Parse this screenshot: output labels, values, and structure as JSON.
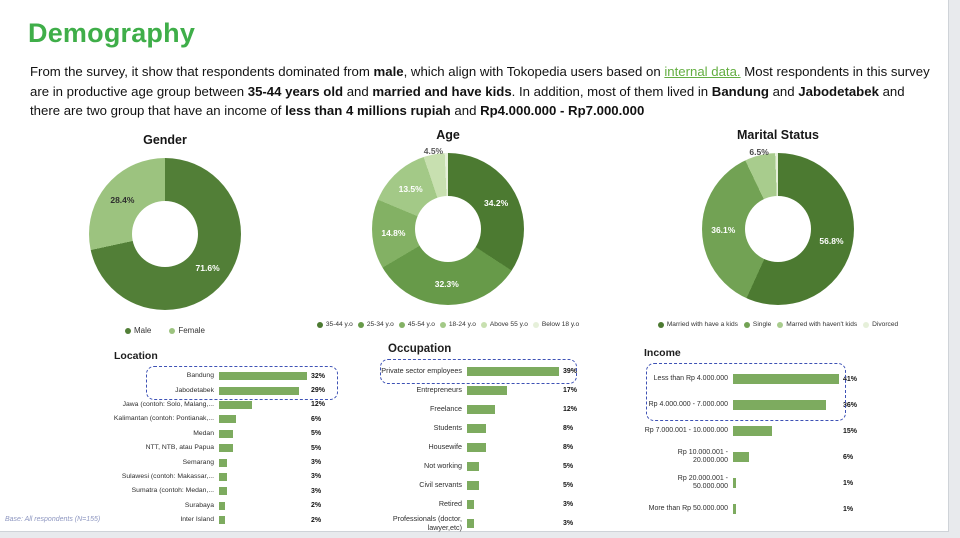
{
  "page": {
    "title": "Demography",
    "footnote": "Base: All respondents (N=155)"
  },
  "intro": {
    "segments": [
      {
        "text": "From the survey, it show that respondents dominated from ",
        "style": "normal"
      },
      {
        "text": "male",
        "style": "bold"
      },
      {
        "text": ", which align with Tokopedia users based on ",
        "style": "normal"
      },
      {
        "text": "internal data.",
        "style": "link"
      },
      {
        "text": " Most respondents in this survey are in productive age group between ",
        "style": "normal"
      },
      {
        "text": "35-44 years old",
        "style": "bold"
      },
      {
        "text": " and ",
        "style": "normal"
      },
      {
        "text": "married and have kids",
        "style": "bold"
      },
      {
        "text": ". In addition, most of them lived in ",
        "style": "normal"
      },
      {
        "text": "Bandung",
        "style": "bold"
      },
      {
        "text": " and ",
        "style": "normal"
      },
      {
        "text": "Jabodetabek",
        "style": "bold"
      },
      {
        "text": " and there are two group that have an income of ",
        "style": "normal"
      },
      {
        "text": "less than 4 millions rupiah",
        "style": "bold"
      },
      {
        "text": " and ",
        "style": "normal"
      },
      {
        "text": "Rp4.000.000 - Rp7.000.000",
        "style": "bold"
      }
    ]
  },
  "highlight_color": "#3e52b5",
  "chart_data": [
    {
      "id": "gender",
      "type": "pie",
      "title": "Gender",
      "labels": [
        "Male",
        "Female"
      ],
      "values": [
        71.6,
        28.4
      ],
      "pct_labels": [
        "71.6%",
        "28.4%"
      ],
      "colors": [
        "#527f37",
        "#9cc37f"
      ],
      "label_colors": [
        "#ffffff",
        "#2f2f2f"
      ],
      "legend_position": "bottom"
    },
    {
      "id": "age",
      "type": "pie",
      "title": "Age",
      "labels": [
        "35-44 y.o",
        "25-34 y.o",
        "45-54 y.o",
        "18-24 y.o",
        "Above 55 y.o",
        "Below 18 y.o"
      ],
      "values": [
        34.2,
        32.3,
        14.8,
        13.5,
        4.5,
        0.7
      ],
      "pct_labels": [
        "34.2%",
        "32.3%",
        "14.8%",
        "13.5%",
        "4.5%",
        ""
      ],
      "colors": [
        "#4c7a31",
        "#679a49",
        "#83b164",
        "#a3c987",
        "#c8e0b0",
        "#e6f0da"
      ],
      "label_colors": [
        "#ffffff",
        "#ffffff",
        "#ffffff",
        "#ffffff",
        "#5a5a5a",
        ""
      ],
      "legend_position": "bottom"
    },
    {
      "id": "marital",
      "type": "pie",
      "title": "Marital Status",
      "labels": [
        "Married with have a kids",
        "Single",
        "Marred with haven't kids",
        "Divorced"
      ],
      "values": [
        56.8,
        36.1,
        6.5,
        0.6
      ],
      "pct_labels": [
        "56.8%",
        "36.1%",
        "6.5%",
        ""
      ],
      "colors": [
        "#4c7a31",
        "#72a254",
        "#a8cc8d",
        "#e6f0da"
      ],
      "label_colors": [
        "#ffffff",
        "#ffffff",
        "#474747",
        ""
      ],
      "legend_position": "bottom"
    },
    {
      "id": "location",
      "type": "bar",
      "title": "Location",
      "categories": [
        "Bandung",
        "Jabodetabek",
        "Jawa (contoh: Solo, Malang,...",
        "Kalimantan (contoh: Pontianak,...",
        "Medan",
        "NTT, NTB, atau Papua",
        "Semarang",
        "Sulawesi (contoh: Makassar,...",
        "Sumatra (contoh: Medan,...",
        "Surabaya",
        "Inter Island"
      ],
      "values": [
        32,
        29,
        12,
        6,
        5,
        5,
        3,
        3,
        3,
        2,
        2
      ],
      "value_labels": [
        "32%",
        "29%",
        "12%",
        "6%",
        "5%",
        "5%",
        "3%",
        "3%",
        "3%",
        "2%",
        "2%"
      ],
      "bar_color": "#7dab5f",
      "highlight_rows": 2
    },
    {
      "id": "occupation",
      "type": "bar",
      "title": "Occupation",
      "categories": [
        "Private sector employees",
        "Entrepreneurs",
        "Freelance",
        "Students",
        "Housewife",
        "Not working",
        "Civil servants",
        "Retired",
        "Professionals (doctor, lawyer,etc)"
      ],
      "values": [
        39,
        17,
        12,
        8,
        8,
        5,
        5,
        3,
        3
      ],
      "value_labels": [
        "39%",
        "17%",
        "12%",
        "8%",
        "8%",
        "5%",
        "5%",
        "3%",
        "3%"
      ],
      "bar_color": "#7dab5f",
      "highlight_rows": 1
    },
    {
      "id": "income",
      "type": "bar",
      "title": "Income",
      "categories": [
        "Less than Rp 4.000.000",
        "Rp 4.000.000 - 7.000.000",
        "Rp 7.000.001 - 10.000.000",
        "Rp 10.000.001 - 20.000.000",
        "Rp 20.000.001 - 50.000.000",
        "More than Rp 50.000.000"
      ],
      "values": [
        41,
        36,
        15,
        6,
        1,
        1
      ],
      "value_labels": [
        "41%",
        "36%",
        "15%",
        "6%",
        "1%",
        "1%"
      ],
      "bar_color": "#7dab5f",
      "highlight_rows": 2
    }
  ]
}
